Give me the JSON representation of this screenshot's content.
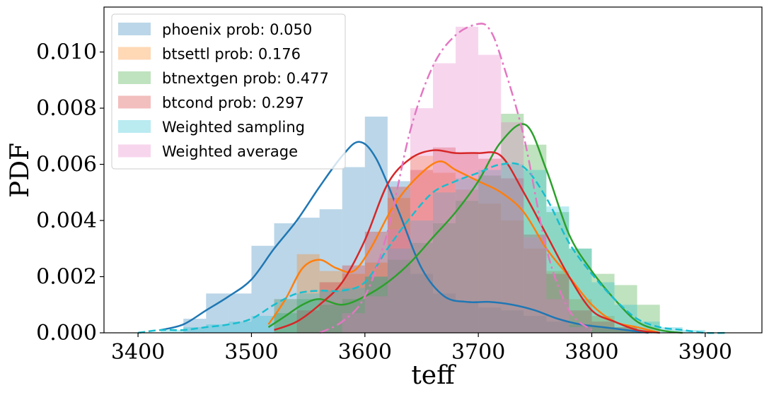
{
  "chart_data": {
    "type": "area",
    "xlabel": "teff",
    "ylabel": "PDF",
    "xlim": [
      3370,
      3950
    ],
    "ylim": [
      0,
      0.0116
    ],
    "xticks": [
      3400,
      3500,
      3600,
      3700,
      3800,
      3900
    ],
    "xtick_labels": [
      "3400",
      "3500",
      "3600",
      "3700",
      "3800",
      "3900"
    ],
    "yticks": [
      0,
      0.002,
      0.004,
      0.006,
      0.008,
      0.01
    ],
    "ytick_labels": [
      "0.000",
      "0.002",
      "0.004",
      "0.006",
      "0.008",
      "0.010"
    ],
    "legend_position": "upper-left",
    "series": [
      {
        "name": "phoenix prob: 0.050",
        "color": "#1f77b4",
        "line_style": "solid",
        "hist_bins": [
          3440,
          3460,
          3480,
          3500,
          3520,
          3540,
          3560,
          3580,
          3600,
          3620,
          3640,
          3660,
          3680,
          3700,
          3720,
          3740,
          3760,
          3780,
          3800,
          3820,
          3840
        ],
        "hist_values": [
          0.0005,
          0.0014,
          0.0014,
          0.0031,
          0.0039,
          0.0041,
          0.0044,
          0.0059,
          0.0077,
          0.0054,
          0.0021,
          0.0014,
          0.0011,
          0.0009,
          0.0008,
          0.0006,
          0.0004,
          0.0003,
          0.0002,
          0.0001
        ],
        "kde_x": [
          3420,
          3440,
          3460,
          3480,
          3500,
          3520,
          3540,
          3560,
          3580,
          3595,
          3610,
          3630,
          3650,
          3670,
          3690,
          3710,
          3730,
          3750,
          3770,
          3790,
          3810,
          3830,
          3850
        ],
        "kde_y": [
          0.0001,
          0.0003,
          0.0008,
          0.0013,
          0.0019,
          0.003,
          0.004,
          0.0052,
          0.0063,
          0.0068,
          0.0062,
          0.0043,
          0.0023,
          0.0013,
          0.0011,
          0.0011,
          0.001,
          0.0008,
          0.0005,
          0.0003,
          0.0002,
          0.0001,
          0.0
        ]
      },
      {
        "name": "btsettl prob: 0.176",
        "color": "#ff7f0e",
        "line_style": "solid",
        "hist_bins": [
          3520,
          3540,
          3560,
          3580,
          3600,
          3620,
          3640,
          3660,
          3680,
          3700,
          3720,
          3740,
          3760,
          3780,
          3800,
          3820,
          3840
        ],
        "hist_values": [
          0.0012,
          0.0028,
          0.0022,
          0.0021,
          0.0025,
          0.0048,
          0.0063,
          0.0057,
          0.0051,
          0.0046,
          0.004,
          0.003,
          0.0022,
          0.0012,
          0.0006,
          0.0002
        ],
        "kde_x": [
          3515,
          3530,
          3545,
          3560,
          3575,
          3590,
          3605,
          3625,
          3645,
          3665,
          3680,
          3700,
          3720,
          3740,
          3760,
          3780,
          3800,
          3820,
          3840,
          3860
        ],
        "kde_y": [
          0.0003,
          0.0012,
          0.0023,
          0.0026,
          0.0023,
          0.0022,
          0.003,
          0.0045,
          0.0055,
          0.0061,
          0.0058,
          0.0054,
          0.005,
          0.0043,
          0.003,
          0.002,
          0.001,
          0.0004,
          0.0002,
          0.0
        ]
      },
      {
        "name": "btnextgen prob: 0.477",
        "color": "#2ca02c",
        "line_style": "solid",
        "hist_bins": [
          3520,
          3540,
          3560,
          3580,
          3600,
          3620,
          3640,
          3660,
          3680,
          3700,
          3720,
          3740,
          3760,
          3780,
          3800,
          3820,
          3840,
          3860
        ],
        "hist_values": [
          0.0007,
          0.0012,
          0.001,
          0.0012,
          0.002,
          0.0026,
          0.0032,
          0.0039,
          0.0047,
          0.0056,
          0.0078,
          0.0067,
          0.0043,
          0.003,
          0.0021,
          0.0017,
          0.001,
          0.0001
        ],
        "kde_x": [
          3515,
          3530,
          3545,
          3560,
          3580,
          3600,
          3620,
          3640,
          3660,
          3680,
          3700,
          3720,
          3742,
          3760,
          3780,
          3800,
          3820,
          3840,
          3860,
          3880
        ],
        "kde_y": [
          0.0002,
          0.0006,
          0.001,
          0.0012,
          0.001,
          0.0013,
          0.0018,
          0.0025,
          0.0034,
          0.0043,
          0.0054,
          0.0068,
          0.0074,
          0.0058,
          0.0035,
          0.0022,
          0.0012,
          0.0004,
          0.0001,
          0.0
        ]
      },
      {
        "name": "btcond prob: 0.297",
        "color": "#d62728",
        "line_style": "solid",
        "hist_bins": [
          3540,
          3560,
          3580,
          3600,
          3620,
          3640,
          3660,
          3680,
          3700,
          3720,
          3740,
          3760,
          3780,
          3800,
          3820,
          3840
        ],
        "hist_values": [
          0.0008,
          0.0018,
          0.0024,
          0.0036,
          0.0052,
          0.0058,
          0.0066,
          0.0064,
          0.0062,
          0.0055,
          0.0035,
          0.0021,
          0.0008,
          0.0004,
          0.0002
        ],
        "kde_x": [
          3520,
          3540,
          3560,
          3580,
          3600,
          3620,
          3640,
          3660,
          3680,
          3700,
          3720,
          3740,
          3760,
          3780,
          3800,
          3820,
          3840,
          3860
        ],
        "kde_y": [
          0.0001,
          0.0004,
          0.001,
          0.0018,
          0.0033,
          0.0053,
          0.0062,
          0.0065,
          0.0064,
          0.0064,
          0.0063,
          0.005,
          0.0035,
          0.002,
          0.0008,
          0.0004,
          0.0001,
          0.0
        ]
      },
      {
        "name": "Weighted sampling",
        "color": "#17becf",
        "line_style": "dashed",
        "hist_bins": [
          3400,
          3420,
          3440,
          3460,
          3480,
          3500,
          3520,
          3540,
          3560,
          3580,
          3600,
          3620,
          3640,
          3660,
          3680,
          3700,
          3720,
          3740,
          3760,
          3780,
          3800,
          3820,
          3840,
          3860,
          3880,
          3900,
          3920
        ],
        "hist_values": [
          0.0,
          0.0001,
          0.0002,
          0.0003,
          0.0004,
          0.0006,
          0.0012,
          0.0014,
          0.0015,
          0.0016,
          0.002,
          0.003,
          0.004,
          0.005,
          0.0055,
          0.0058,
          0.006,
          0.0058,
          0.0045,
          0.003,
          0.0018,
          0.001,
          0.0004,
          0.0002,
          0.0001,
          0.0
        ],
        "kde_x": [
          3400,
          3420,
          3440,
          3460,
          3480,
          3500,
          3520,
          3540,
          3560,
          3580,
          3600,
          3620,
          3640,
          3660,
          3680,
          3700,
          3720,
          3740,
          3760,
          3780,
          3800,
          3820,
          3840,
          3860,
          3880,
          3900,
          3920
        ],
        "kde_y": [
          0.0,
          0.0001,
          0.0001,
          0.0002,
          0.0003,
          0.0005,
          0.001,
          0.0014,
          0.0015,
          0.0015,
          0.0018,
          0.003,
          0.0041,
          0.005,
          0.0054,
          0.0057,
          0.006,
          0.0059,
          0.0048,
          0.0032,
          0.0021,
          0.0012,
          0.0005,
          0.0002,
          0.0001,
          0.0,
          0.0
        ]
      },
      {
        "name": "Weighted average",
        "color": "#e377c2",
        "line_style": "dashdot",
        "hist_bins": [
          3580,
          3600,
          3620,
          3640,
          3660,
          3680,
          3700,
          3720,
          3740,
          3760,
          3780,
          3800
        ],
        "hist_values": [
          0.0007,
          0.0013,
          0.0037,
          0.008,
          0.0096,
          0.0109,
          0.0099,
          0.0075,
          0.0034,
          0.0012,
          0.0002
        ],
        "kde_x": [
          3560,
          3580,
          3600,
          3620,
          3640,
          3660,
          3680,
          3700,
          3710,
          3720,
          3740,
          3760,
          3780,
          3800
        ],
        "kde_y": [
          0.0,
          0.0004,
          0.0013,
          0.0036,
          0.0072,
          0.0095,
          0.0106,
          0.011,
          0.0108,
          0.0098,
          0.007,
          0.003,
          0.0008,
          0.0001
        ]
      }
    ]
  }
}
